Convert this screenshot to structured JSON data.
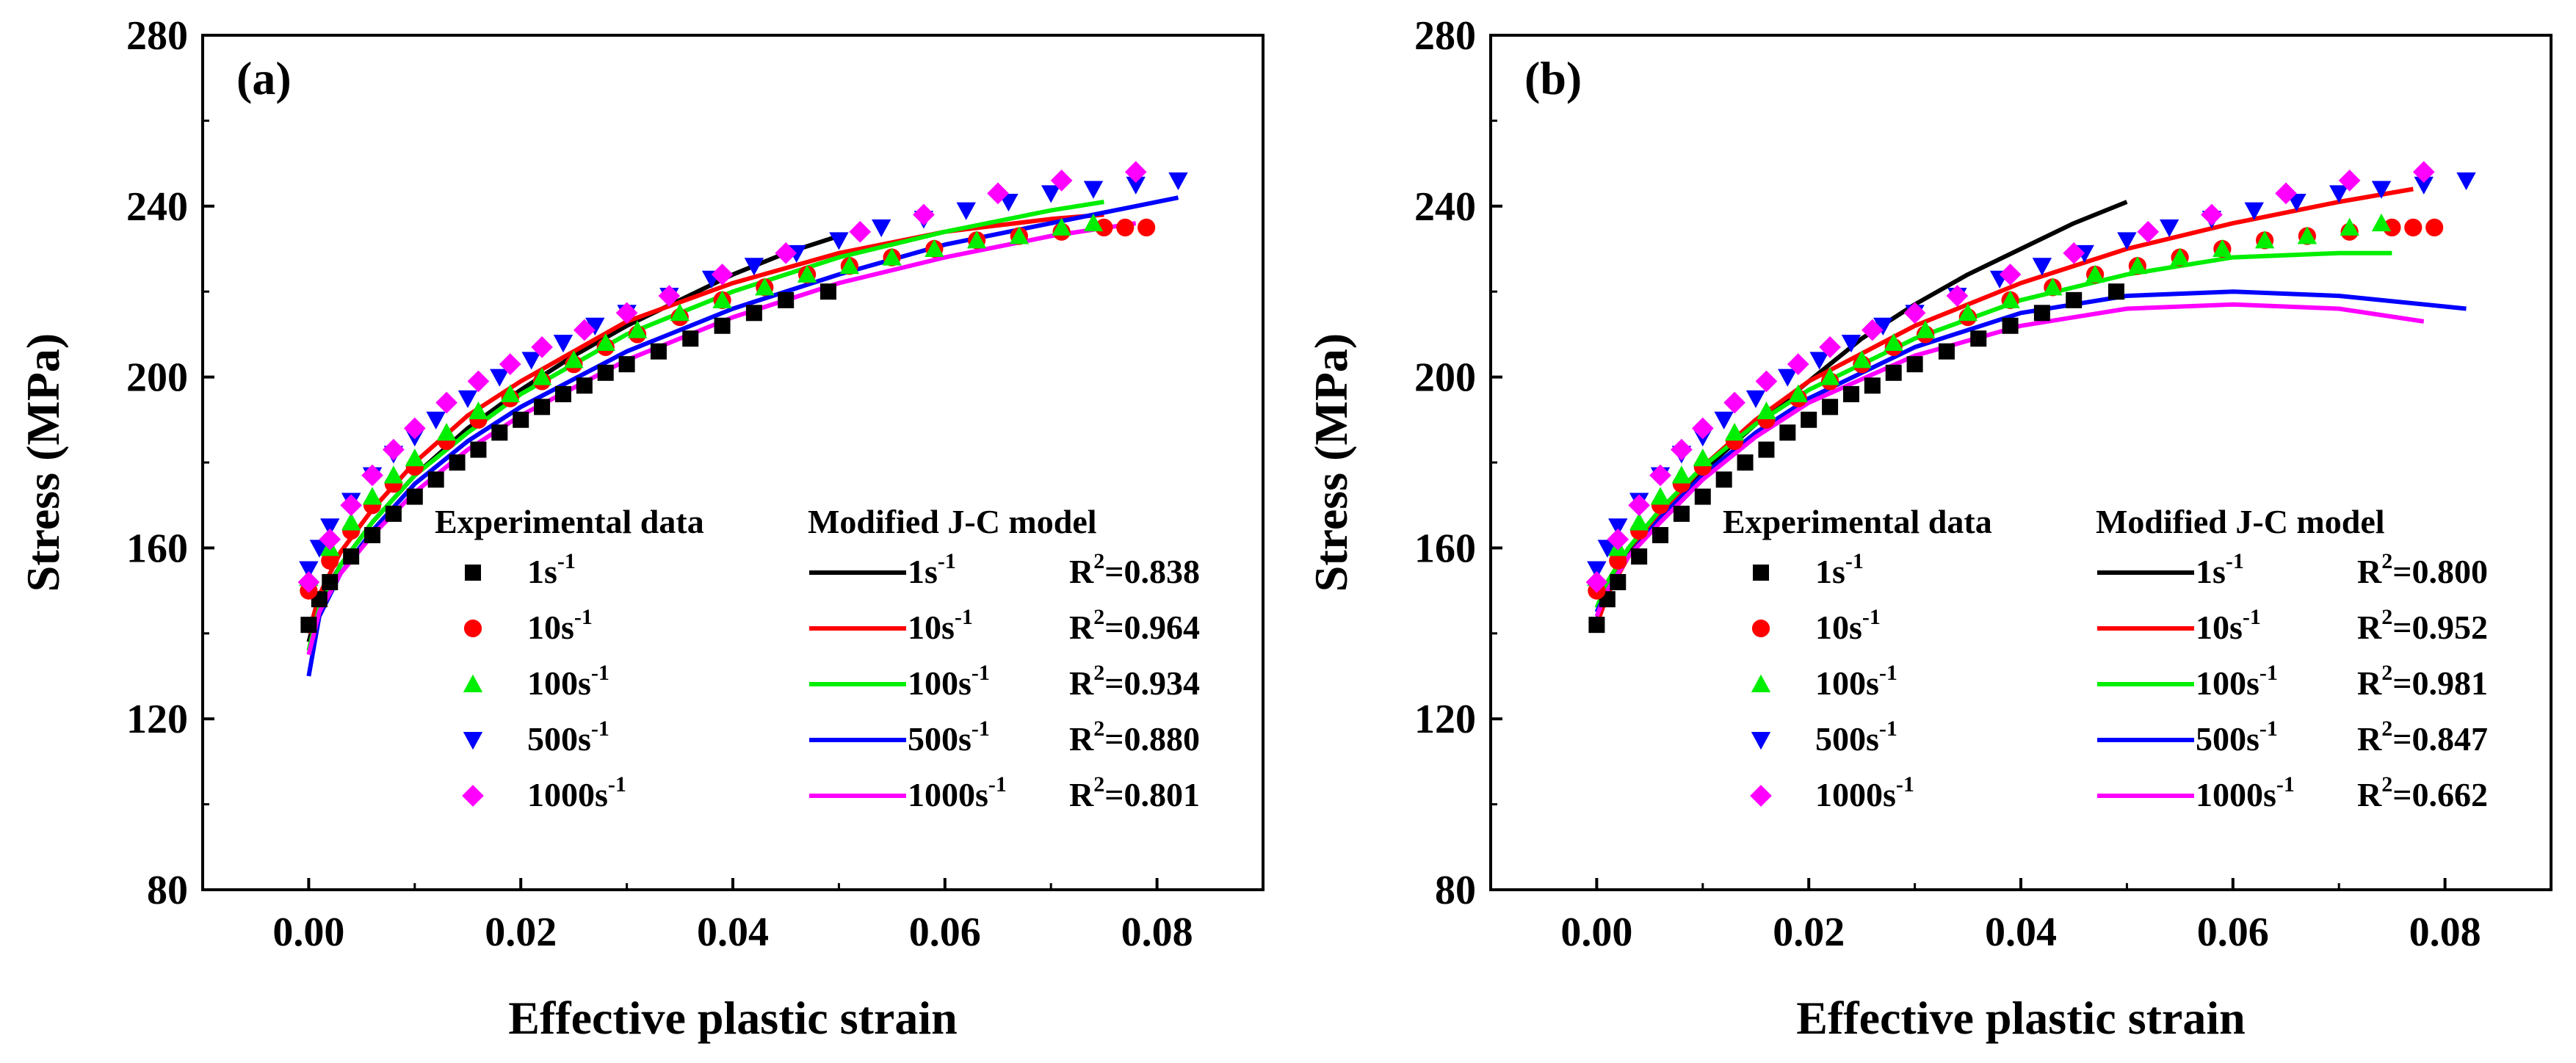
{
  "chart_data": [
    {
      "type": "scatter+line",
      "panel_label": "(a)",
      "xlabel": "Effective plastic strain",
      "ylabel": "Stress (MPa)",
      "xlim": [
        -0.01,
        0.09
      ],
      "ylim": [
        80,
        280
      ],
      "xticks": [
        "0.00",
        "0.02",
        "0.04",
        "0.06",
        "0.08"
      ],
      "yticks": [
        "80",
        "120",
        "160",
        "200",
        "240",
        "280"
      ],
      "legend_exp_title": "Experimental data",
      "legend_model_title": "Modified J-C model",
      "series": [
        {
          "name": "1s",
          "sup": "-1",
          "color": "#000000",
          "marker": "square",
          "r2_label": "R",
          "r2_sup": "2",
          "r2_value": "=0.838",
          "exp": {
            "x": [
              0,
              0.001,
              0.002,
              0.004,
              0.006,
              0.008,
              0.01,
              0.012,
              0.014,
              0.016,
              0.018,
              0.02,
              0.022,
              0.024,
              0.026,
              0.028,
              0.03,
              0.033,
              0.036,
              0.039,
              0.042,
              0.045,
              0.049
            ],
            "y": [
              142,
              148,
              152,
              158,
              163,
              168,
              172,
              176,
              180,
              183,
              187,
              190,
              193,
              196,
              198,
              201,
              203,
              206,
              209,
              212,
              215,
              218,
              220
            ]
          },
          "fit": {
            "x": [
              0,
              0.001,
              0.003,
              0.006,
              0.01,
              0.015,
              0.02,
              0.025,
              0.03,
              0.035,
              0.04,
              0.045,
              0.05
            ],
            "y": [
              138,
              147,
              156,
              166,
              177,
              188,
              197,
              205,
              212,
              218,
              224,
              229,
              233
            ]
          }
        },
        {
          "name": "10s",
          "sup": "-1",
          "color": "#ff0000",
          "marker": "circle",
          "r2_label": "R",
          "r2_sup": "2",
          "r2_value": "=0.964",
          "exp": {
            "x": [
              0,
              0.002,
              0.004,
              0.006,
              0.008,
              0.01,
              0.013,
              0.016,
              0.019,
              0.022,
              0.025,
              0.028,
              0.031,
              0.035,
              0.039,
              0.043,
              0.047,
              0.051,
              0.055,
              0.059,
              0.063,
              0.067,
              0.071,
              0.075,
              0.077,
              0.079
            ],
            "y": [
              150,
              157,
              164,
              170,
              175,
              179,
              185,
              190,
              195,
              199,
              203,
              207,
              210,
              214,
              218,
              221,
              224,
              226,
              228,
              230,
              232,
              233,
              234,
              235,
              235,
              235
            ]
          },
          "fit": {
            "x": [
              0,
              0.001,
              0.003,
              0.006,
              0.01,
              0.015,
              0.02,
              0.03,
              0.04,
              0.05,
              0.06,
              0.07,
              0.075
            ],
            "y": [
              140,
              149,
              159,
              169,
              180,
              191,
              199,
              213,
              222,
              229,
              234,
              237,
              238
            ]
          }
        },
        {
          "name": "100s",
          "sup": "-1",
          "color": "#00ee00",
          "marker": "triangle-up",
          "r2_label": "R",
          "r2_sup": "2",
          "r2_value": "=0.934",
          "exp": {
            "x": [
              0,
              0.002,
              0.004,
              0.006,
              0.008,
              0.01,
              0.013,
              0.016,
              0.019,
              0.022,
              0.025,
              0.028,
              0.031,
              0.035,
              0.039,
              0.043,
              0.047,
              0.051,
              0.055,
              0.059,
              0.063,
              0.067,
              0.071,
              0.074
            ],
            "y": [
              153,
              160,
              166,
              172,
              177,
              181,
              187,
              192,
              196,
              200,
              204,
              208,
              211,
              215,
              218,
              221,
              224,
              226,
              228,
              230,
              232,
              233,
              235,
              236
            ]
          },
          "fit": {
            "x": [
              0,
              0.001,
              0.003,
              0.006,
              0.01,
              0.015,
              0.02,
              0.03,
              0.04,
              0.05,
              0.06,
              0.07,
              0.075
            ],
            "y": [
              136,
              146,
              156,
              166,
              177,
              187,
              196,
              210,
              220,
              228,
              234,
              239,
              241
            ]
          }
        },
        {
          "name": "500s",
          "sup": "-1",
          "color": "#0000ff",
          "marker": "triangle-down",
          "r2_label": "R",
          "r2_sup": "2",
          "r2_value": "=0.880",
          "exp": {
            "x": [
              0,
              0.001,
              0.002,
              0.004,
              0.006,
              0.008,
              0.01,
              0.012,
              0.015,
              0.018,
              0.021,
              0.024,
              0.027,
              0.03,
              0.034,
              0.038,
              0.042,
              0.046,
              0.05,
              0.054,
              0.058,
              0.062,
              0.066,
              0.07,
              0.074,
              0.078,
              0.082
            ],
            "y": [
              155,
              160,
              165,
              171,
              177,
              182,
              186,
              190,
              195,
              200,
              204,
              208,
              212,
              215,
              219,
              223,
              226,
              229,
              232,
              235,
              237,
              239,
              241,
              243,
              244,
              245,
              246
            ]
          },
          "fit": {
            "x": [
              0,
              0.001,
              0.003,
              0.006,
              0.01,
              0.015,
              0.02,
              0.03,
              0.04,
              0.05,
              0.06,
              0.07,
              0.082
            ],
            "y": [
              130,
              144,
              154,
              164,
              175,
              185,
              193,
              206,
              216,
              224,
              231,
              236,
              242
            ]
          }
        },
        {
          "name": "1000s",
          "sup": "-1",
          "color": "#ff00ff",
          "marker": "diamond",
          "r2_label": "R",
          "r2_sup": "2",
          "r2_value": "=0.801",
          "exp": {
            "x": [
              0,
              0.002,
              0.004,
              0.006,
              0.008,
              0.01,
              0.013,
              0.016,
              0.019,
              0.022,
              0.026,
              0.03,
              0.034,
              0.039,
              0.045,
              0.052,
              0.058,
              0.065,
              0.071,
              0.078
            ],
            "y": [
              152,
              162,
              170,
              177,
              183,
              188,
              194,
              199,
              203,
              207,
              211,
              215,
              219,
              224,
              229,
              234,
              238,
              243,
              246,
              248
            ]
          },
          "fit": {
            "x": [
              0,
              0.001,
              0.003,
              0.006,
              0.01,
              0.015,
              0.02,
              0.03,
              0.04,
              0.05,
              0.06,
              0.07,
              0.078
            ],
            "y": [
              135,
              145,
              154,
              163,
              173,
              183,
              191,
              204,
              214,
              222,
              228,
              233,
              236
            ]
          }
        }
      ]
    },
    {
      "type": "scatter+line",
      "panel_label": "(b)",
      "xlabel": "Effective plastic strain",
      "ylabel": "Stress (MPa)",
      "xlim": [
        -0.01,
        0.09
      ],
      "ylim": [
        80,
        280
      ],
      "xticks": [
        "0.00",
        "0.02",
        "0.04",
        "0.06",
        "0.08"
      ],
      "yticks": [
        "80",
        "120",
        "160",
        "200",
        "240",
        "280"
      ],
      "legend_exp_title": "Experimental data",
      "legend_model_title": "Modified J-C model",
      "series": [
        {
          "name": "1s",
          "sup": "-1",
          "color": "#000000",
          "marker": "square",
          "r2_label": "R",
          "r2_sup": "2",
          "r2_value": "=0.800",
          "exp": {
            "x": [
              0,
              0.001,
              0.002,
              0.004,
              0.006,
              0.008,
              0.01,
              0.012,
              0.014,
              0.016,
              0.018,
              0.02,
              0.022,
              0.024,
              0.026,
              0.028,
              0.03,
              0.033,
              0.036,
              0.039,
              0.042,
              0.045,
              0.049
            ],
            "y": [
              142,
              148,
              152,
              158,
              163,
              168,
              172,
              176,
              180,
              183,
              187,
              190,
              193,
              196,
              198,
              201,
              203,
              206,
              209,
              212,
              215,
              218,
              220
            ]
          },
          "fit": {
            "x": [
              0,
              0.001,
              0.003,
              0.006,
              0.01,
              0.015,
              0.02,
              0.025,
              0.03,
              0.035,
              0.04,
              0.045,
              0.05
            ],
            "y": [
              143,
              150,
              159,
              168,
              178,
              189,
              199,
              209,
              217,
              224,
              230,
              236,
              241
            ]
          }
        },
        {
          "name": "10s",
          "sup": "-1",
          "color": "#ff0000",
          "marker": "circle",
          "r2_label": "R",
          "r2_sup": "2",
          "r2_value": "=0.952",
          "exp": {
            "x": [
              0,
              0.002,
              0.004,
              0.006,
              0.008,
              0.01,
              0.013,
              0.016,
              0.019,
              0.022,
              0.025,
              0.028,
              0.031,
              0.035,
              0.039,
              0.043,
              0.047,
              0.051,
              0.055,
              0.059,
              0.063,
              0.067,
              0.071,
              0.075,
              0.077,
              0.079
            ],
            "y": [
              150,
              157,
              164,
              170,
              175,
              179,
              185,
              190,
              195,
              199,
              203,
              207,
              210,
              214,
              218,
              221,
              224,
              226,
              228,
              230,
              232,
              233,
              234,
              235,
              235,
              235
            ]
          },
          "fit": {
            "x": [
              0,
              0.001,
              0.003,
              0.006,
              0.01,
              0.015,
              0.02,
              0.03,
              0.04,
              0.05,
              0.06,
              0.07,
              0.077
            ],
            "y": [
              142,
              149,
              158,
              168,
              179,
              190,
              199,
              212,
              222,
              230,
              236,
              241,
              244
            ]
          }
        },
        {
          "name": "100s",
          "sup": "-1",
          "color": "#00ee00",
          "marker": "triangle-up",
          "r2_label": "R",
          "r2_sup": "2",
          "r2_value": "=0.981",
          "exp": {
            "x": [
              0,
              0.002,
              0.004,
              0.006,
              0.008,
              0.01,
              0.013,
              0.016,
              0.019,
              0.022,
              0.025,
              0.028,
              0.031,
              0.035,
              0.039,
              0.043,
              0.047,
              0.051,
              0.055,
              0.059,
              0.063,
              0.067,
              0.071,
              0.074
            ],
            "y": [
              153,
              160,
              166,
              172,
              177,
              181,
              187,
              192,
              196,
              200,
              204,
              208,
              211,
              215,
              218,
              221,
              224,
              226,
              228,
              230,
              232,
              233,
              235,
              236
            ]
          },
          "fit": {
            "x": [
              0,
              0.001,
              0.003,
              0.006,
              0.01,
              0.015,
              0.02,
              0.03,
              0.04,
              0.05,
              0.06,
              0.07,
              0.075
            ],
            "y": [
              146,
              152,
              160,
              169,
              179,
              189,
              197,
              209,
              218,
              224,
              228,
              229,
              229
            ]
          }
        },
        {
          "name": "500s",
          "sup": "-1",
          "color": "#0000ff",
          "marker": "triangle-down",
          "r2_label": "R",
          "r2_sup": "2",
          "r2_value": "=0.847",
          "exp": {
            "x": [
              0,
              0.001,
              0.002,
              0.004,
              0.006,
              0.008,
              0.01,
              0.012,
              0.015,
              0.018,
              0.021,
              0.024,
              0.027,
              0.03,
              0.034,
              0.038,
              0.042,
              0.046,
              0.05,
              0.054,
              0.058,
              0.062,
              0.066,
              0.07,
              0.074,
              0.078,
              0.082
            ],
            "y": [
              155,
              160,
              165,
              171,
              177,
              182,
              186,
              190,
              195,
              200,
              204,
              208,
              212,
              215,
              219,
              223,
              226,
              229,
              232,
              235,
              237,
              239,
              241,
              243,
              244,
              245,
              246
            ]
          },
          "fit": {
            "x": [
              0,
              0.001,
              0.003,
              0.006,
              0.01,
              0.015,
              0.02,
              0.03,
              0.04,
              0.05,
              0.06,
              0.07,
              0.082
            ],
            "y": [
              145,
              150,
              158,
              167,
              177,
              187,
              195,
              207,
              215,
              219,
              220,
              219,
              216
            ]
          }
        },
        {
          "name": "1000s",
          "sup": "-1",
          "color": "#ff00ff",
          "marker": "diamond",
          "r2_label": "R",
          "r2_sup": "2",
          "r2_value": "=0.662",
          "exp": {
            "x": [
              0,
              0.002,
              0.004,
              0.006,
              0.008,
              0.01,
              0.013,
              0.016,
              0.019,
              0.022,
              0.026,
              0.03,
              0.034,
              0.039,
              0.045,
              0.052,
              0.058,
              0.065,
              0.071,
              0.078
            ],
            "y": [
              152,
              162,
              170,
              177,
              183,
              188,
              194,
              199,
              203,
              207,
              211,
              215,
              219,
              224,
              229,
              234,
              238,
              243,
              246,
              248
            ]
          },
          "fit": {
            "x": [
              0,
              0.001,
              0.003,
              0.006,
              0.01,
              0.015,
              0.02,
              0.03,
              0.04,
              0.05,
              0.06,
              0.07,
              0.078
            ],
            "y": [
              144,
              150,
              158,
              166,
              176,
              186,
              194,
              205,
              212,
              216,
              217,
              216,
              213
            ]
          }
        }
      ]
    }
  ]
}
